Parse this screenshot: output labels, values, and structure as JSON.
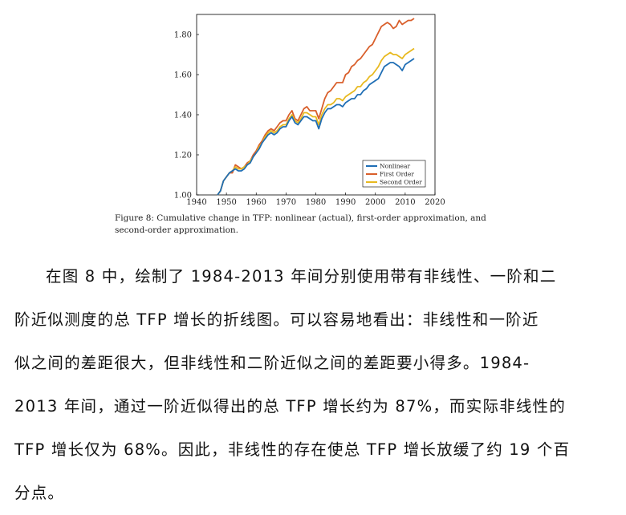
{
  "chart_data": {
    "type": "line",
    "x_ticks": [
      1940,
      1950,
      1960,
      1970,
      1980,
      1990,
      2000,
      2010,
      2020
    ],
    "y_ticks": [
      "1.00",
      "1.20",
      "1.40",
      "1.60",
      "1.80"
    ],
    "xlim": [
      1940,
      2020
    ],
    "ylim": [
      1.0,
      1.9
    ],
    "legend_placement": "bottom-right",
    "series": [
      {
        "name": "Nonlinear",
        "color": "#1f6eb5",
        "x": [
          1947,
          1948,
          1949,
          1950,
          1951,
          1952,
          1953,
          1954,
          1955,
          1956,
          1957,
          1958,
          1959,
          1960,
          1961,
          1962,
          1963,
          1964,
          1965,
          1966,
          1967,
          1968,
          1969,
          1970,
          1971,
          1972,
          1973,
          1974,
          1975,
          1976,
          1977,
          1978,
          1979,
          1980,
          1981,
          1982,
          1983,
          1984,
          1985,
          1986,
          1987,
          1988,
          1989,
          1990,
          1991,
          1992,
          1993,
          1994,
          1995,
          1996,
          1997,
          1998,
          1999,
          2000,
          2001,
          2002,
          2003,
          2004,
          2005,
          2006,
          2007,
          2008,
          2009,
          2010,
          2011,
          2012,
          2013
        ],
        "y": [
          1.0,
          1.02,
          1.07,
          1.09,
          1.11,
          1.12,
          1.13,
          1.12,
          1.12,
          1.13,
          1.15,
          1.16,
          1.19,
          1.21,
          1.23,
          1.26,
          1.28,
          1.3,
          1.31,
          1.3,
          1.31,
          1.33,
          1.34,
          1.34,
          1.37,
          1.39,
          1.36,
          1.35,
          1.37,
          1.39,
          1.39,
          1.38,
          1.37,
          1.37,
          1.33,
          1.38,
          1.41,
          1.43,
          1.43,
          1.44,
          1.45,
          1.45,
          1.44,
          1.46,
          1.47,
          1.48,
          1.48,
          1.5,
          1.5,
          1.52,
          1.53,
          1.55,
          1.56,
          1.57,
          1.58,
          1.61,
          1.64,
          1.65,
          1.66,
          1.66,
          1.65,
          1.64,
          1.62,
          1.65,
          1.66,
          1.67,
          1.68
        ]
      },
      {
        "name": "First Order",
        "color": "#d95f2b",
        "x": [
          1947,
          1948,
          1949,
          1950,
          1951,
          1952,
          1953,
          1954,
          1955,
          1956,
          1957,
          1958,
          1959,
          1960,
          1961,
          1962,
          1963,
          1964,
          1965,
          1966,
          1967,
          1968,
          1969,
          1970,
          1971,
          1972,
          1973,
          1974,
          1975,
          1976,
          1977,
          1978,
          1979,
          1980,
          1981,
          1982,
          1983,
          1984,
          1985,
          1986,
          1987,
          1988,
          1989,
          1990,
          1991,
          1992,
          1993,
          1994,
          1995,
          1996,
          1997,
          1998,
          1999,
          2000,
          2001,
          2002,
          2003,
          2004,
          2005,
          2006,
          2007,
          2008,
          2009,
          2010,
          2011,
          2012,
          2013
        ],
        "y": [
          1.0,
          1.02,
          1.07,
          1.09,
          1.11,
          1.11,
          1.15,
          1.14,
          1.13,
          1.14,
          1.16,
          1.17,
          1.2,
          1.22,
          1.25,
          1.27,
          1.3,
          1.32,
          1.33,
          1.32,
          1.34,
          1.36,
          1.37,
          1.37,
          1.4,
          1.42,
          1.38,
          1.37,
          1.4,
          1.43,
          1.44,
          1.42,
          1.42,
          1.42,
          1.38,
          1.43,
          1.48,
          1.51,
          1.52,
          1.54,
          1.56,
          1.56,
          1.56,
          1.6,
          1.61,
          1.64,
          1.65,
          1.67,
          1.68,
          1.7,
          1.72,
          1.74,
          1.75,
          1.78,
          1.81,
          1.84,
          1.85,
          1.86,
          1.85,
          1.83,
          1.84,
          1.87,
          1.85,
          1.86,
          1.87,
          1.87,
          1.88
        ]
      },
      {
        "name": "Second Order",
        "color": "#e8b91f",
        "x": [
          1947,
          1948,
          1949,
          1950,
          1951,
          1952,
          1953,
          1954,
          1955,
          1956,
          1957,
          1958,
          1959,
          1960,
          1961,
          1962,
          1963,
          1964,
          1965,
          1966,
          1967,
          1968,
          1969,
          1970,
          1971,
          1972,
          1973,
          1974,
          1975,
          1976,
          1977,
          1978,
          1979,
          1980,
          1981,
          1982,
          1983,
          1984,
          1985,
          1986,
          1987,
          1988,
          1989,
          1990,
          1991,
          1992,
          1993,
          1994,
          1995,
          1996,
          1997,
          1998,
          1999,
          2000,
          2001,
          2002,
          2003,
          2004,
          2005,
          2006,
          2007,
          2008,
          2009,
          2010,
          2011,
          2012,
          2013
        ],
        "y": [
          1.0,
          1.02,
          1.07,
          1.09,
          1.11,
          1.12,
          1.14,
          1.13,
          1.13,
          1.14,
          1.15,
          1.17,
          1.19,
          1.21,
          1.24,
          1.26,
          1.29,
          1.31,
          1.32,
          1.31,
          1.32,
          1.34,
          1.35,
          1.35,
          1.38,
          1.4,
          1.37,
          1.36,
          1.38,
          1.41,
          1.41,
          1.4,
          1.39,
          1.39,
          1.35,
          1.4,
          1.43,
          1.45,
          1.45,
          1.46,
          1.48,
          1.48,
          1.47,
          1.49,
          1.5,
          1.51,
          1.52,
          1.54,
          1.54,
          1.56,
          1.57,
          1.59,
          1.6,
          1.62,
          1.64,
          1.67,
          1.69,
          1.7,
          1.71,
          1.7,
          1.7,
          1.69,
          1.68,
          1.7,
          1.71,
          1.72,
          1.73
        ]
      }
    ]
  },
  "figure_caption": {
    "line1": "Figure 8:  Cumulative change in TFP:  nonlinear (actual), first-order approximation, and",
    "line2": "second-order approximation."
  },
  "paragraph": {
    "lines": [
      "在图 8 中，绘制了 1984-2013 年间分别使用带有非线性、一阶和二",
      "阶近似测度的总 TFP 增长的折线图。可以容易地看出：非线性和一阶近",
      "似之间的差距很大，但非线性和二阶近似之间的差距要小得多。1984-",
      "2013 年间，通过一阶近似得出的总 TFP 增长约为 87%，而实际非线性的",
      "TFP 增长仅为 68%。因此，非线性的存在使总 TFP 增长放缓了约 19 个百",
      "分点。"
    ]
  }
}
